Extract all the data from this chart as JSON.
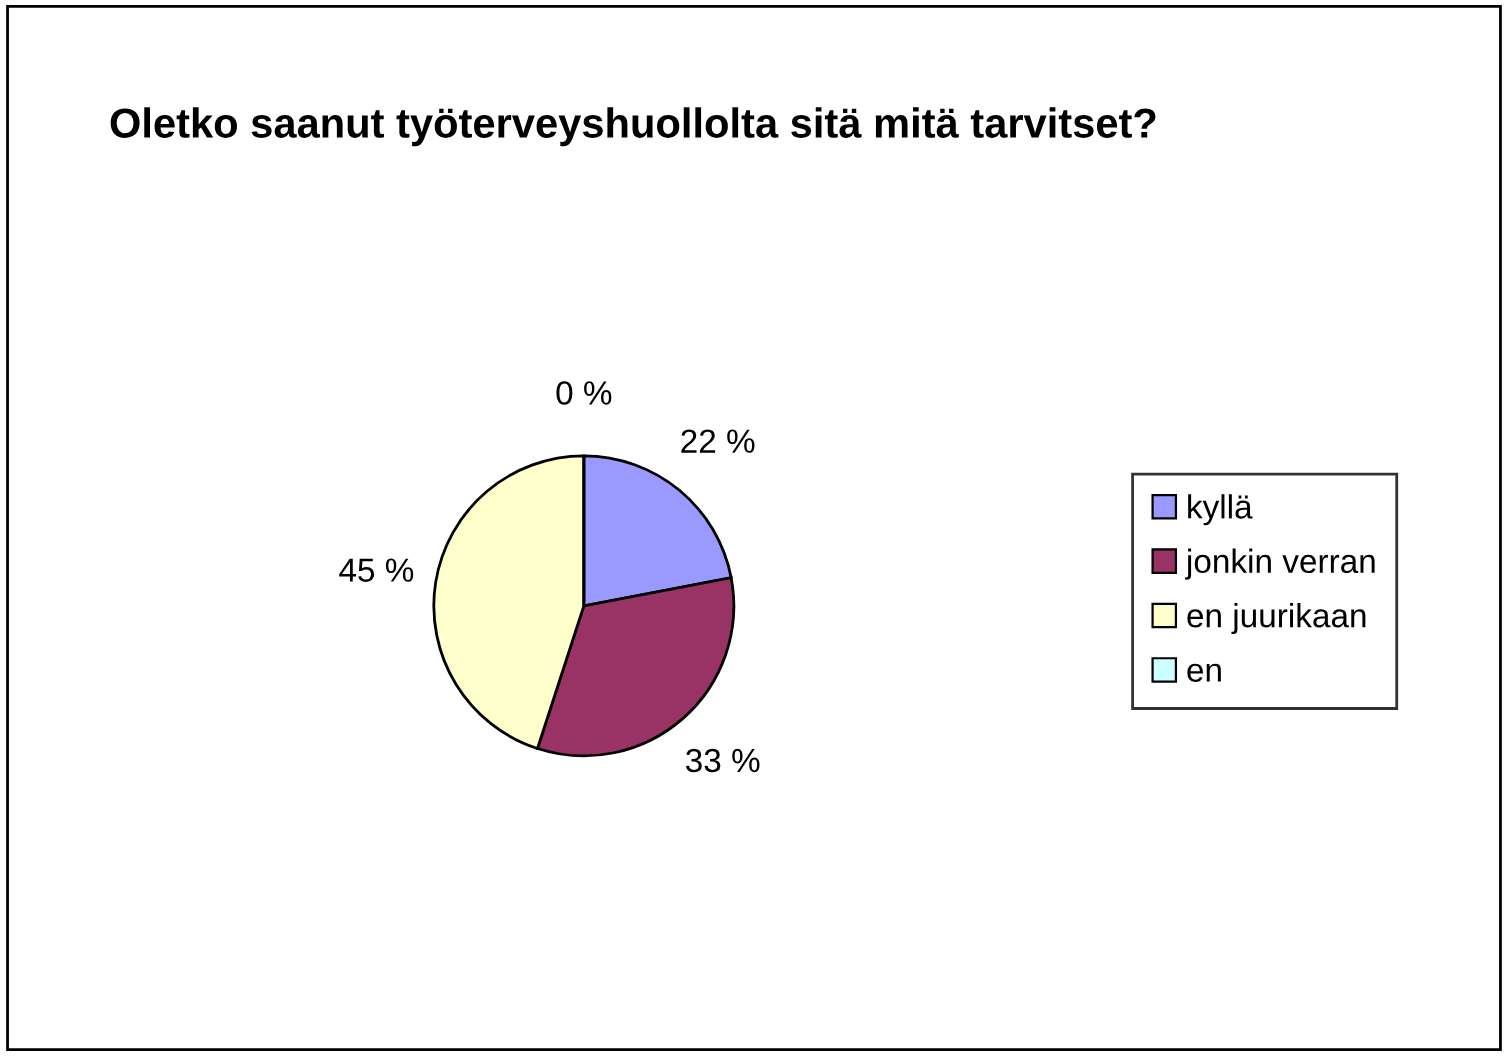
{
  "chart_data": {
    "type": "pie",
    "title": "Oletko saanut työterveyshuollolta sitä mitä tarvitset?",
    "categories": [
      "kyllä",
      "jonkin verran",
      "en juurikaan",
      "en"
    ],
    "values": [
      22,
      33,
      45,
      0
    ],
    "colors": [
      "#9999ff",
      "#993366",
      "#ffffcc",
      "#ccffff"
    ],
    "value_labels": [
      "22 %",
      "33 %",
      "45 %",
      "0 %"
    ],
    "legend": "right"
  }
}
